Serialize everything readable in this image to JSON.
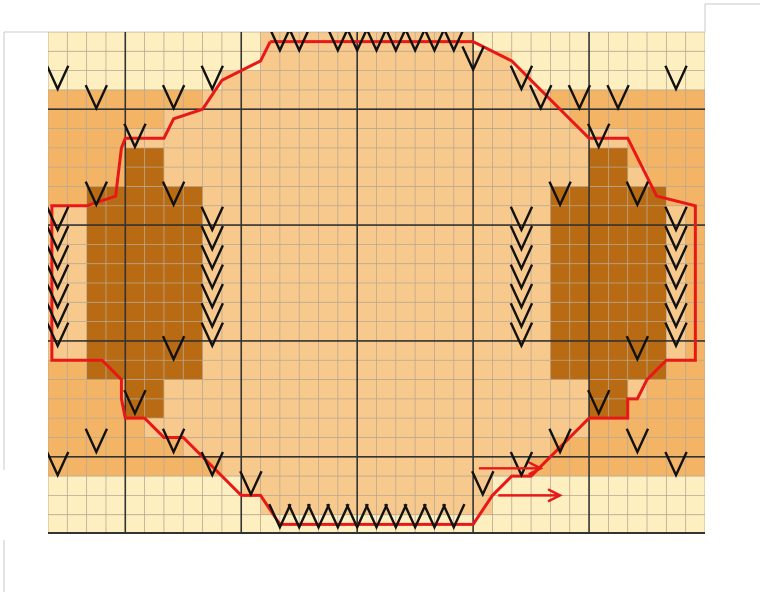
{
  "chart": {
    "cols": 34,
    "rows": 26,
    "colors": {
      "background_cell": "#fdefc0",
      "body_cell": "#f8c98c",
      "band_cell": "#f3b466",
      "dark_cell": "#b86b12",
      "thin_grid": "#b9a890",
      "major_grid": "#333333",
      "outline": "#e81818",
      "stitch_mark": "#111111",
      "arrow": "#e81818"
    },
    "major_lines": {
      "every": 6,
      "offset_col": 4,
      "offset_row": 4
    },
    "light_bands": {
      "top_rows": [
        0,
        2
      ],
      "bottom_rows": [
        23,
        25
      ],
      "side_cols_left": [
        0,
        3
      ],
      "side_cols_right": [
        30,
        33
      ]
    },
    "dark_blocks": [
      {
        "c0": 4,
        "c1": 5,
        "r0": 6,
        "r1": 19
      },
      {
        "c0": 2,
        "c1": 7,
        "r0": 8,
        "r1": 17
      },
      {
        "c0": 28,
        "c1": 29,
        "r0": 6,
        "r1": 19
      },
      {
        "c0": 26,
        "c1": 31,
        "r0": 8,
        "r1": 17
      }
    ],
    "outline_vertices_cells": [
      [
        11.5,
        0.5
      ],
      [
        22,
        0.5
      ],
      [
        24,
        1.5
      ],
      [
        25,
        2.5
      ],
      [
        27,
        4.5
      ],
      [
        28,
        5.5
      ],
      [
        30,
        5.5
      ],
      [
        30.5,
        6.5
      ],
      [
        31.5,
        8.5
      ],
      [
        33.5,
        9
      ],
      [
        33.5,
        17
      ],
      [
        32,
        17
      ],
      [
        31,
        18
      ],
      [
        30.5,
        19
      ],
      [
        30,
        19
      ],
      [
        30,
        20
      ],
      [
        28,
        20
      ],
      [
        27,
        21
      ],
      [
        26,
        22
      ],
      [
        25,
        23
      ],
      [
        24,
        23
      ],
      [
        23,
        24
      ],
      [
        22,
        25.5
      ],
      [
        12,
        25.5
      ],
      [
        11,
        24
      ],
      [
        10,
        24
      ],
      [
        9,
        23
      ],
      [
        8,
        22
      ],
      [
        7,
        21
      ],
      [
        6,
        21
      ],
      [
        5,
        20
      ],
      [
        4,
        20
      ],
      [
        3.8,
        19
      ],
      [
        3.8,
        18
      ],
      [
        2.8,
        17
      ],
      [
        0.2,
        17
      ],
      [
        0.2,
        9
      ],
      [
        2,
        9
      ],
      [
        3.5,
        8.5
      ],
      [
        3.8,
        6
      ],
      [
        4,
        5.5
      ],
      [
        6,
        5.5
      ],
      [
        6.5,
        4.5
      ],
      [
        8,
        4
      ],
      [
        9,
        2.5
      ],
      [
        11,
        1.5
      ],
      [
        11.5,
        0.5
      ]
    ],
    "v_marks_cells": [
      [
        12,
        0.5
      ],
      [
        13,
        0.5
      ],
      [
        15,
        0.5
      ],
      [
        16,
        0.5
      ],
      [
        17,
        0.5
      ],
      [
        18,
        0.5
      ],
      [
        19,
        0.5
      ],
      [
        20,
        0.5
      ],
      [
        21,
        0.5
      ],
      [
        22,
        1.5
      ],
      [
        0.5,
        2.5
      ],
      [
        8.5,
        2.5
      ],
      [
        24.5,
        2.5
      ],
      [
        32.5,
        2.5
      ],
      [
        2.5,
        3.5
      ],
      [
        6.5,
        3.5
      ],
      [
        25.5,
        3.5
      ],
      [
        27.5,
        3.5
      ],
      [
        29.5,
        3.5
      ],
      [
        4.5,
        5.5
      ],
      [
        28.5,
        5.5
      ],
      [
        2.5,
        8.5
      ],
      [
        6.5,
        8.5
      ],
      [
        26.5,
        8.5
      ],
      [
        30.5,
        8.5
      ],
      [
        0.5,
        9.8
      ],
      [
        8.5,
        9.8
      ],
      [
        24.5,
        9.8
      ],
      [
        32.5,
        9.8
      ],
      [
        0.5,
        10.8
      ],
      [
        8.5,
        10.8
      ],
      [
        24.5,
        10.8
      ],
      [
        32.5,
        10.8
      ],
      [
        0.5,
        11.8
      ],
      [
        8.5,
        11.8
      ],
      [
        24.5,
        11.8
      ],
      [
        32.5,
        11.8
      ],
      [
        0.5,
        12.8
      ],
      [
        8.5,
        12.8
      ],
      [
        24.5,
        12.8
      ],
      [
        32.5,
        12.8
      ],
      [
        0.5,
        13.8
      ],
      [
        8.5,
        13.8
      ],
      [
        24.5,
        13.8
      ],
      [
        32.5,
        13.8
      ],
      [
        0.5,
        14.8
      ],
      [
        8.5,
        14.8
      ],
      [
        24.5,
        14.8
      ],
      [
        32.5,
        14.8
      ],
      [
        0.5,
        15.8
      ],
      [
        8.5,
        15.8
      ],
      [
        24.5,
        15.8
      ],
      [
        32.5,
        15.8
      ],
      [
        6.5,
        16.5
      ],
      [
        30.5,
        16.5
      ],
      [
        4.5,
        19.3
      ],
      [
        28.5,
        19.3
      ],
      [
        2.5,
        21.3
      ],
      [
        6.5,
        21.3
      ],
      [
        26.5,
        21.3
      ],
      [
        30.5,
        21.3
      ],
      [
        0.5,
        22.5
      ],
      [
        8.5,
        22.5
      ],
      [
        24.5,
        22.5
      ],
      [
        32.5,
        22.5
      ],
      [
        10.5,
        23.5
      ],
      [
        22.5,
        23.5
      ],
      [
        12,
        25.2
      ],
      [
        13,
        25.2
      ],
      [
        14,
        25.2
      ],
      [
        15,
        25.2
      ],
      [
        16,
        25.2
      ],
      [
        17,
        25.2
      ],
      [
        18,
        25.2
      ],
      [
        19,
        25.2
      ],
      [
        20,
        25.2
      ],
      [
        21,
        25.2
      ]
    ],
    "arrows_cells": [
      {
        "x0": 22.3,
        "x1": 25.5,
        "y": 22.6
      },
      {
        "x0": 23.3,
        "x1": 26.5,
        "y": 24.0
      }
    ]
  }
}
